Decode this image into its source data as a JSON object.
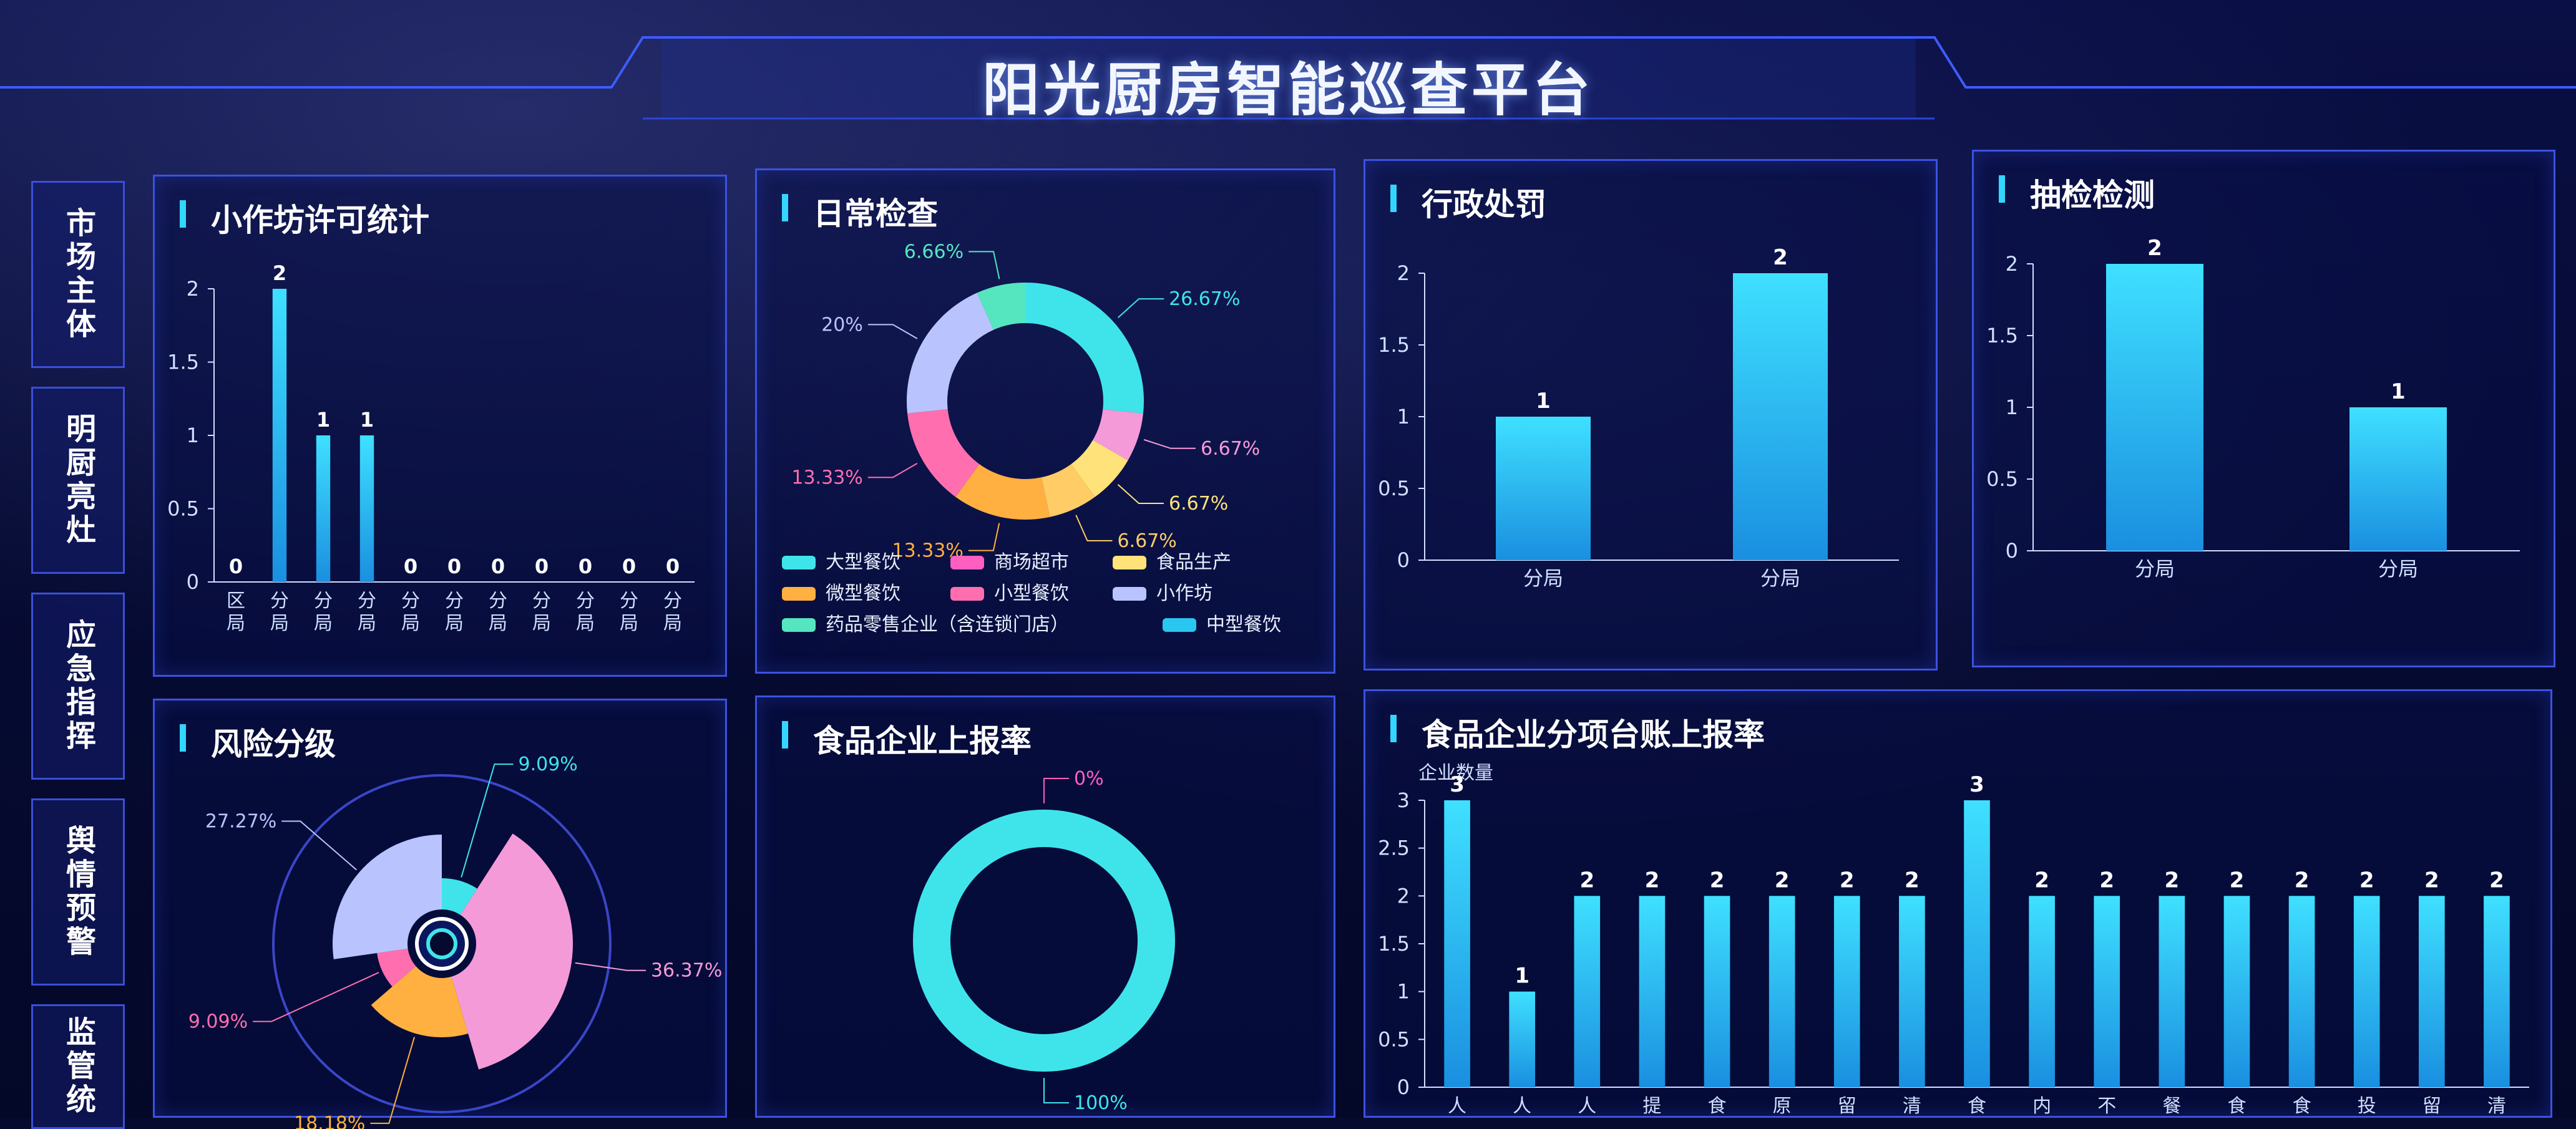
{
  "title": "阳光厨房智能巡查平台",
  "nav": [
    {
      "label": "市场主体"
    },
    {
      "label": "明厨亮灶"
    },
    {
      "label": "应急指挥"
    },
    {
      "label": "舆情预警"
    },
    {
      "label": "监管统"
    }
  ],
  "panels": {
    "workshop": {
      "title": "小作坊许可统计"
    },
    "daily": {
      "title": "日常检查"
    },
    "penalty": {
      "title": "行政处罚"
    },
    "sampling": {
      "title": "抽检检测"
    },
    "risk": {
      "title": "风险分级"
    },
    "report_rate": {
      "title": "食品企业上报率"
    },
    "ledger": {
      "title": "食品企业分项台账上报率"
    }
  },
  "colors": {
    "bar": "#29c6f0",
    "axis": "#cfe0ff",
    "panel_border": "#3b52e0"
  },
  "chart_data": [
    {
      "id": "workshop",
      "type": "bar",
      "title": "小作坊许可统计",
      "categories": [
        "区局",
        "分局",
        "分局",
        "分局",
        "分局",
        "分局",
        "分局",
        "分局",
        "分局",
        "分局",
        "分局"
      ],
      "values": [
        0,
        2,
        1,
        1,
        0,
        0,
        0,
        0,
        0,
        0,
        0
      ],
      "yticks": [
        "0",
        "0.5",
        "1",
        "1.5",
        "2"
      ],
      "ylim": [
        0,
        2
      ],
      "grid": false
    },
    {
      "id": "daily",
      "type": "pie",
      "title": "日常检查",
      "slices": [
        {
          "name": "",
          "label": "26.67%",
          "value": 26.67,
          "color": "#3fe4ea"
        },
        {
          "name": "",
          "label": "6.67%",
          "value": 6.67,
          "color": "#f59ad8"
        },
        {
          "name": "",
          "label": "6.67%",
          "value": 6.67,
          "color": "#ffe37a"
        },
        {
          "name": "",
          "label": "6.67%",
          "value": 6.67,
          "color": "#ffcc66"
        },
        {
          "name": "",
          "label": "13.33%",
          "value": 13.33,
          "color": "#ffb040"
        },
        {
          "name": "",
          "label": "13.33%",
          "value": 13.33,
          "color": "#ff6fb0"
        },
        {
          "name": "",
          "label": "20%",
          "value": 20,
          "color": "#b9c4ff"
        },
        {
          "name": "",
          "label": "6.66%",
          "value": 6.66,
          "color": "#55e6c0"
        }
      ],
      "legend": [
        {
          "name": "大型餐饮",
          "color": "#3fe4ea"
        },
        {
          "name": "商场超市",
          "color": "#ff5fc0"
        },
        {
          "name": "食品生产",
          "color": "#ffe37a"
        },
        {
          "name": "微型餐饮",
          "color": "#ffb040"
        },
        {
          "name": "小型餐饮",
          "color": "#ff6fb0"
        },
        {
          "name": "小作坊",
          "color": "#b9c4ff"
        },
        {
          "name": "药品零售企业（含连锁门店）",
          "color": "#55e6c0"
        },
        {
          "name": "中型餐饮",
          "color": "#29c6f0"
        }
      ]
    },
    {
      "id": "penalty",
      "type": "bar",
      "title": "行政处罚",
      "categories": [
        "分局",
        "分局"
      ],
      "values": [
        1,
        2
      ],
      "yticks": [
        "0",
        "0.5",
        "1",
        "1.5",
        "2"
      ],
      "ylim": [
        0,
        2
      ]
    },
    {
      "id": "sampling",
      "type": "bar",
      "title": "抽检检测",
      "categories": [
        "分局",
        "分局"
      ],
      "values": [
        2,
        1
      ],
      "yticks": [
        "0",
        "0.5",
        "1",
        "1.5",
        "2"
      ],
      "ylim": [
        0,
        2
      ]
    },
    {
      "id": "risk",
      "type": "pie",
      "title": "风险分级",
      "slices": [
        {
          "name": "",
          "label": "9.09%",
          "value": 9.09,
          "color": "#3fe4ea"
        },
        {
          "name": "",
          "label": "36.37%",
          "value": 36.37,
          "color": "#f59ad8"
        },
        {
          "name": "",
          "label": "18.18%",
          "value": 18.18,
          "color": "#ffb040"
        },
        {
          "name": "",
          "label": "9.09%",
          "value": 9.09,
          "color": "#ff6fb0"
        },
        {
          "name": "",
          "label": "27.27%",
          "value": 27.27,
          "color": "#b9c4ff"
        }
      ]
    },
    {
      "id": "report_rate",
      "type": "pie",
      "title": "食品企业上报率",
      "slices": [
        {
          "name": "",
          "label": "0%",
          "value": 0,
          "color": "#ff5fc0"
        },
        {
          "name": "",
          "label": "100%",
          "value": 100,
          "color": "#3fe4ea"
        }
      ]
    },
    {
      "id": "ledger",
      "type": "bar",
      "title": "食品企业分项台账上报率",
      "ylabel": "企业数量",
      "categories": [
        "人",
        "人",
        "人",
        "提",
        "食",
        "原",
        "留",
        "清",
        "食",
        "内",
        "不",
        "餐",
        "食",
        "食",
        "投",
        "留",
        "清"
      ],
      "values": [
        3,
        1,
        2,
        2,
        2,
        2,
        2,
        2,
        3,
        2,
        2,
        2,
        2,
        2,
        2,
        2,
        2
      ],
      "yticks": [
        "0",
        "0.5",
        "1",
        "1.5",
        "2",
        "2.5",
        "3"
      ],
      "ylim": [
        0,
        3
      ]
    }
  ]
}
